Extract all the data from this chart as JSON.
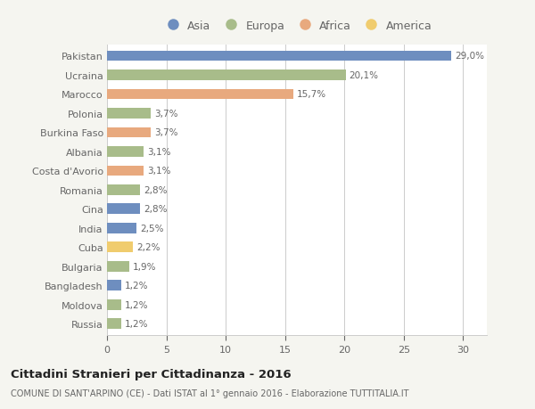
{
  "countries": [
    "Pakistan",
    "Ucraina",
    "Marocco",
    "Polonia",
    "Burkina Faso",
    "Albania",
    "Costa d'Avorio",
    "Romania",
    "Cina",
    "India",
    "Cuba",
    "Bulgaria",
    "Bangladesh",
    "Moldova",
    "Russia"
  ],
  "values": [
    29.0,
    20.1,
    15.7,
    3.7,
    3.7,
    3.1,
    3.1,
    2.8,
    2.8,
    2.5,
    2.2,
    1.9,
    1.2,
    1.2,
    1.2
  ],
  "labels": [
    "29,0%",
    "20,1%",
    "15,7%",
    "3,7%",
    "3,7%",
    "3,1%",
    "3,1%",
    "2,8%",
    "2,8%",
    "2,5%",
    "2,2%",
    "1,9%",
    "1,2%",
    "1,2%",
    "1,2%"
  ],
  "continents": [
    "Asia",
    "Europa",
    "Africa",
    "Europa",
    "Africa",
    "Europa",
    "Africa",
    "Europa",
    "Asia",
    "Asia",
    "America",
    "Europa",
    "Asia",
    "Europa",
    "Europa"
  ],
  "continent_colors": {
    "Asia": "#6e8ebf",
    "Europa": "#a8bc8a",
    "Africa": "#e8a97e",
    "America": "#f0cc6e"
  },
  "legend_items": [
    "Asia",
    "Europa",
    "Africa",
    "America"
  ],
  "legend_colors": [
    "#6e8ebf",
    "#a8bc8a",
    "#e8a97e",
    "#f0cc6e"
  ],
  "title": "Cittadini Stranieri per Cittadinanza - 2016",
  "subtitle": "COMUNE DI SANT'ARPINO (CE) - Dati ISTAT al 1° gennaio 2016 - Elaborazione TUTTITALIA.IT",
  "xlim": [
    0,
    32
  ],
  "xticks": [
    0,
    5,
    10,
    15,
    20,
    25,
    30
  ],
  "background_color": "#f5f5f0",
  "bar_background": "#ffffff",
  "grid_color": "#cccccc",
  "text_color": "#666666",
  "title_color": "#222222",
  "bar_height": 0.55
}
